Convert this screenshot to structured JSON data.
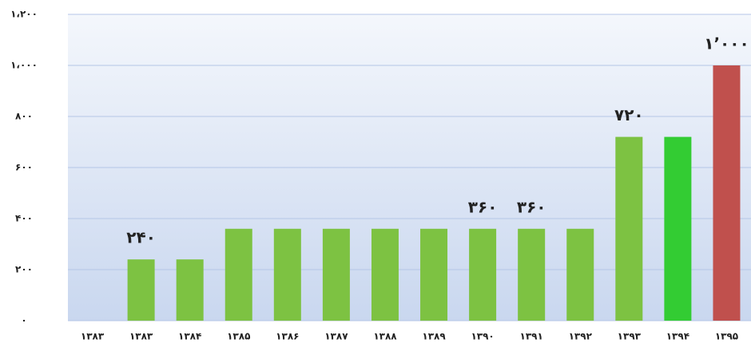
{
  "chart_data": {
    "type": "bar",
    "categories": [
      "۱۳۸۳",
      "۱۳۸۳",
      "۱۳۸۴",
      "۱۳۸۵",
      "۱۳۸۶",
      "۱۳۸۷",
      "۱۳۸۸",
      "۱۳۸۹",
      "۱۳۹۰",
      "۱۳۹۱",
      "۱۳۹۲",
      "۱۳۹۳",
      "۱۳۹۴",
      "۱۳۹۵"
    ],
    "values": [
      null,
      240,
      240,
      360,
      360,
      360,
      360,
      360,
      360,
      360,
      360,
      720,
      720,
      1000
    ],
    "value_labels": [
      null,
      "۲۴۰",
      null,
      null,
      null,
      null,
      null,
      null,
      "۳۶۰",
      "۳۶۰",
      null,
      "۷۲۰",
      null,
      "۱٬۰۰۰"
    ],
    "colors": [
      "#7dc242",
      "#7dc242",
      "#7dc242",
      "#7dc242",
      "#7dc242",
      "#7dc242",
      "#7dc242",
      "#7dc242",
      "#7dc242",
      "#7dc242",
      "#7dc242",
      "#7dc242",
      "#33cc33",
      "#c0504d"
    ],
    "ylim": [
      0,
      1200
    ],
    "yticks": [
      {
        "value": 0,
        "label": "۰"
      },
      {
        "value": 200,
        "label": "۲۰۰"
      },
      {
        "value": 400,
        "label": "۴۰۰"
      },
      {
        "value": 600,
        "label": "۶۰۰"
      },
      {
        "value": 800,
        "label": "۸۰۰"
      },
      {
        "value": 1000,
        "label": "۱،۰۰۰"
      },
      {
        "value": 1200,
        "label": "۱،۲۰۰"
      }
    ],
    "grid": true
  }
}
